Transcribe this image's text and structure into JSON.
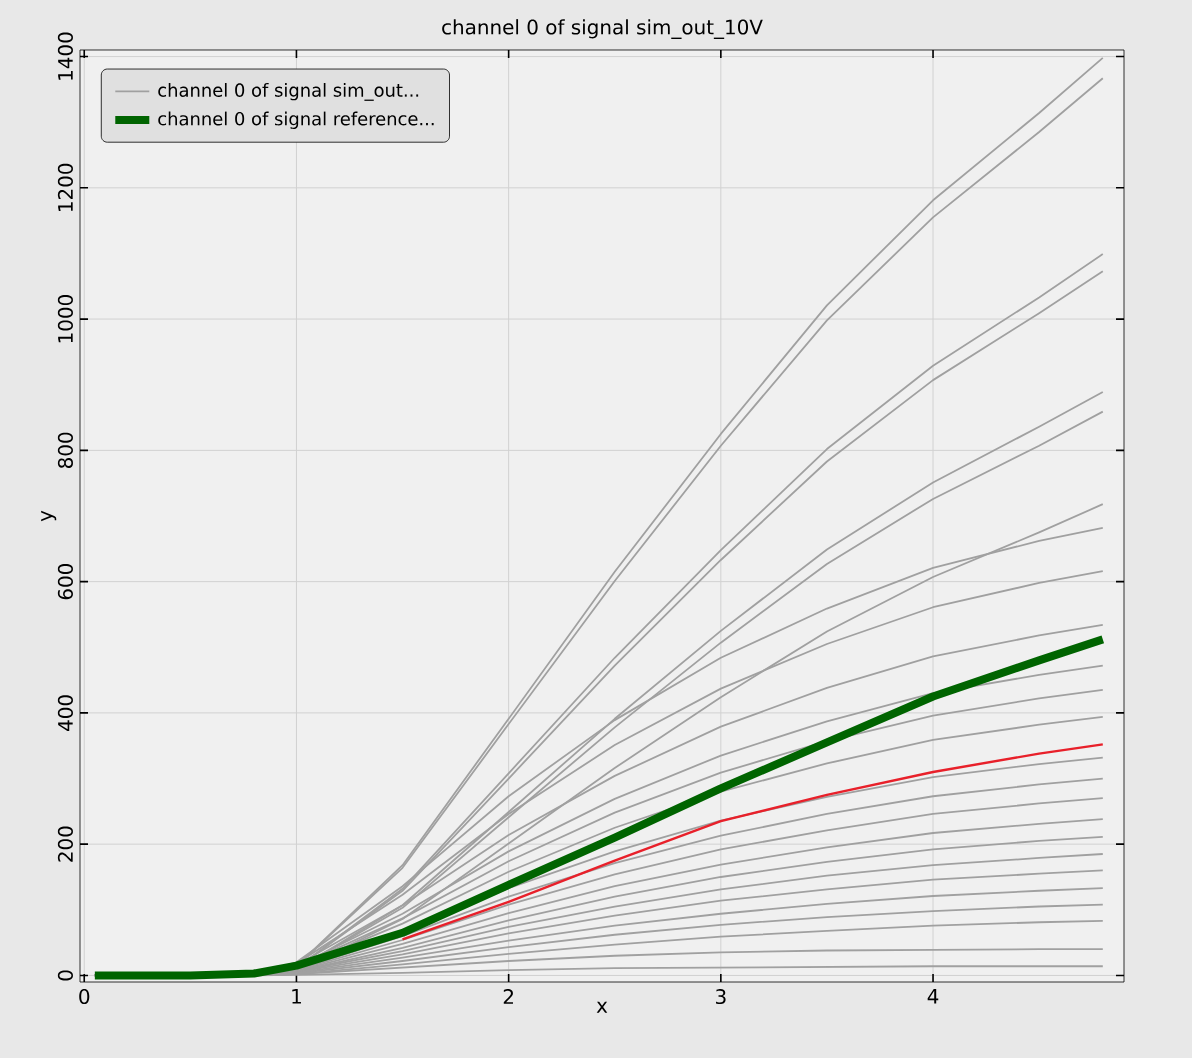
{
  "chart_data": {
    "type": "line",
    "title": "channel 0 of signal sim_out_10V",
    "xlabel": "x",
    "ylabel": "y",
    "x": [
      0.05,
      0.5,
      0.8,
      1,
      1.5,
      2,
      2.5,
      3,
      3.5,
      4,
      4.5,
      4.8
    ],
    "xlim": [
      -0.02,
      4.9
    ],
    "ylim": [
      -10,
      1410
    ],
    "xticks": [
      0,
      1,
      2,
      3,
      4
    ],
    "yticks": [
      0,
      200,
      400,
      600,
      800,
      1000,
      1200,
      1400
    ],
    "grid": true,
    "legend": "top left",
    "marker": "none",
    "line_style": "solid",
    "series": [
      {
        "name": "channel 0 of signal sim_out...",
        "color": "#a0a0a0",
        "values": [
          0,
          0,
          3,
          14,
          168,
          391,
          615,
          825,
          1021,
          1181,
          1314,
          1398
        ]
      },
      {
        "name": "channel 0 of signal reference...",
        "color": "#006400",
        "values": [
          0,
          0,
          3,
          15,
          65,
          138,
          210,
          285,
          355,
          425,
          480,
          512
        ]
      },
      {
        "color": "#e8202a",
        "values": [
          null,
          null,
          null,
          null,
          55,
          112,
          175,
          235,
          275,
          310,
          338,
          352
        ]
      },
      {
        "color": "#a0a0a0",
        "values": [
          0,
          0,
          3,
          14,
          164,
          383,
          601,
          807,
          998,
          1155,
          1285,
          1367
        ]
      },
      {
        "color": "#a0a0a0",
        "values": [
          0,
          0,
          2,
          11,
          132,
          308,
          484,
          648,
          802,
          929,
          1033,
          1099
        ]
      },
      {
        "color": "#a0a0a0",
        "values": [
          0,
          0,
          2,
          11,
          129,
          300,
          472,
          633,
          783,
          907,
          1009,
          1073
        ]
      },
      {
        "color": "#a0a0a0",
        "values": [
          0,
          0,
          2,
          9,
          107,
          249,
          391,
          525,
          649,
          751,
          836,
          889
        ]
      },
      {
        "color": "#a0a0a0",
        "values": [
          0,
          0,
          2,
          9,
          103,
          241,
          378,
          507,
          627,
          726,
          807,
          859
        ]
      },
      {
        "color": "#a0a0a0",
        "values": [
          0,
          0,
          1,
          7,
          86,
          201,
          316,
          424,
          524,
          607,
          675,
          718
        ]
      },
      {
        "color": "#a0a0a0",
        "values": [
          0,
          0,
          2,
          20,
          136,
          273,
          389,
          484,
          559,
          621,
          662,
          682
        ]
      },
      {
        "color": "#a0a0a0",
        "values": [
          0,
          0,
          2,
          18,
          123,
          246,
          351,
          437,
          505,
          561,
          598,
          616
        ]
      },
      {
        "color": "#a0a0a0",
        "values": [
          0,
          0,
          2,
          16,
          107,
          214,
          304,
          379,
          438,
          486,
          518,
          534
        ]
      },
      {
        "color": "#a0a0a0",
        "values": [
          0,
          0,
          1,
          14,
          94,
          189,
          269,
          335,
          387,
          430,
          458,
          472
        ]
      },
      {
        "color": "#a0a0a0",
        "values": [
          0,
          0,
          1,
          13,
          87,
          174,
          248,
          309,
          357,
          396,
          422,
          435
        ]
      },
      {
        "color": "#a0a0a0",
        "values": [
          0,
          0,
          1,
          12,
          79,
          158,
          225,
          280,
          323,
          359,
          382,
          394
        ]
      },
      {
        "color": "#a0a0a0",
        "values": [
          0,
          0,
          1,
          10,
          66,
          133,
          189,
          236,
          272,
          302,
          322,
          332
        ]
      },
      {
        "color": "#a0a0a0",
        "values": [
          0,
          0,
          1,
          9,
          60,
          120,
          171,
          213,
          246,
          273,
          291,
          300
        ]
      },
      {
        "color": "#a0a0a0",
        "values": [
          0,
          0,
          1,
          8,
          54,
          108,
          154,
          192,
          221,
          246,
          262,
          270
        ]
      },
      {
        "color": "#a0a0a0",
        "values": [
          0,
          0,
          1,
          7,
          48,
          95,
          136,
          169,
          195,
          217,
          231,
          238
        ]
      },
      {
        "color": "#a0a0a0",
        "values": [
          0,
          0,
          1,
          6,
          42,
          84,
          120,
          150,
          173,
          192,
          205,
          211
        ]
      },
      {
        "color": "#a0a0a0",
        "values": [
          0,
          0,
          1,
          6,
          37,
          74,
          105,
          131,
          152,
          168,
          179,
          185
        ]
      },
      {
        "color": "#a0a0a0",
        "values": [
          0,
          0,
          0,
          5,
          32,
          64,
          91,
          114,
          131,
          146,
          155,
          160
        ]
      },
      {
        "color": "#a0a0a0",
        "values": [
          0,
          0,
          0,
          4,
          27,
          53,
          76,
          94,
          109,
          121,
          129,
          133
        ]
      },
      {
        "color": "#a0a0a0",
        "values": [
          0,
          0,
          0,
          3,
          22,
          43,
          62,
          77,
          89,
          98,
          105,
          108
        ]
      },
      {
        "color": "#a0a0a0",
        "values": [
          0,
          0,
          0,
          2,
          17,
          33,
          47,
          59,
          68,
          76,
          81,
          83
        ]
      },
      {
        "color": "#a0a0a0",
        "values": [
          0,
          0,
          0,
          2,
          12,
          22,
          30,
          35,
          38,
          39,
          40,
          40
        ]
      },
      {
        "color": "#a0a0a0",
        "values": [
          0,
          0,
          0,
          1,
          4,
          8,
          11,
          12,
          13,
          14,
          14,
          14
        ]
      }
    ]
  }
}
